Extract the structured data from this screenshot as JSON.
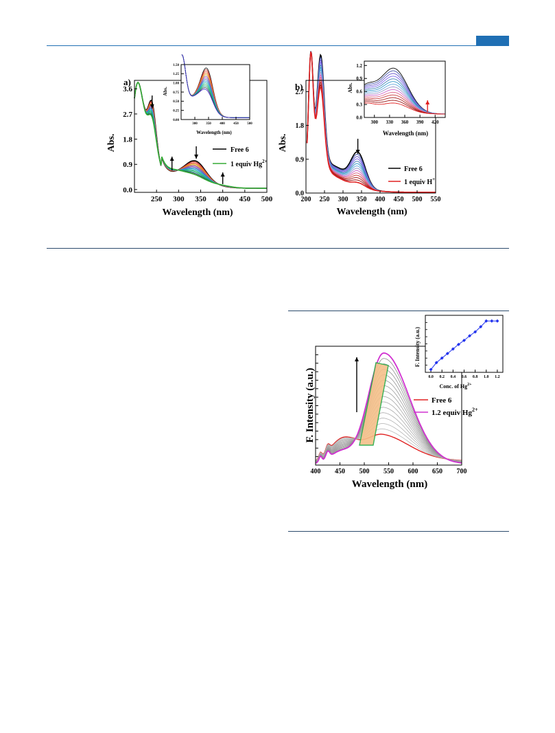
{
  "colors": {
    "rule_blue": "#1f6fb4",
    "dark_rule": "#2b4a6b"
  },
  "chart_data": [
    {
      "id": "a",
      "type": "line",
      "panel_label": "a)",
      "xlabel": "Wavelength (nm)",
      "ylabel": "Abs.",
      "xlim": [
        200,
        500
      ],
      "ylim": [
        -0.1,
        3.9
      ],
      "xticks": [
        "250",
        "300",
        "350",
        "400",
        "450",
        "500"
      ],
      "yticks": [
        "0.0",
        "0.9",
        "1.8",
        "2.7",
        "3.6"
      ],
      "legend": [
        {
          "label": "Free 6",
          "color": "#000000"
        },
        {
          "label": "1 equiv Hg",
          "sup": "2+",
          "color": "#33aa33"
        }
      ],
      "arrows": [
        "down at 240 nm",
        "up at 285 nm",
        "down at 340 nm",
        "up at 400 nm"
      ],
      "series": [
        {
          "role": "start",
          "peaks": {
            "p240": 3.3,
            "p340": 1.12
          }
        },
        {
          "role": "end",
          "peaks": {
            "p240": 2.75,
            "p340": 0.62
          }
        }
      ],
      "inset": {
        "xlabel": "Wavelength (nm)",
        "ylabel": "Abs.",
        "xlim": [
          250,
          500
        ],
        "ylim": [
          0.0,
          1.5
        ],
        "xticks": [
          "300",
          "350",
          "400",
          "450",
          "500"
        ],
        "yticks": [
          "0.00",
          "0.25",
          "0.50",
          "0.75",
          "1.00",
          "1.25",
          "1.50"
        ]
      }
    },
    {
      "id": "b",
      "type": "line",
      "panel_label": "b)",
      "xlabel": "Wavelength (nm)",
      "ylabel": "Abs.",
      "xlim": [
        200,
        550
      ],
      "ylim": [
        0.0,
        3.0
      ],
      "xticks": [
        "200",
        "250",
        "300",
        "350",
        "400",
        "450",
        "500",
        "550"
      ],
      "yticks": [
        "0.0",
        "0.9",
        "1.8",
        "2.7"
      ],
      "legend": [
        {
          "label": "Free 6",
          "color": "#000000"
        },
        {
          "label": "1 equiv H",
          "sup": "+",
          "color": "#e02020"
        }
      ],
      "arrows": [
        "down at 340 nm"
      ],
      "series": [
        {
          "role": "start",
          "peaks": {
            "p340": 1.05
          }
        },
        {
          "role": "end",
          "peaks": {
            "p340": 0.25
          }
        }
      ],
      "inset": {
        "xlabel": "Wavelength (nm)",
        "ylabel": "Abs.",
        "xlim": [
          280,
          440
        ],
        "ylim": [
          0.0,
          1.3
        ],
        "xticks": [
          "300",
          "330",
          "360",
          "390",
          "420"
        ],
        "yticks": [
          "0.0",
          "0.3",
          "0.6",
          "0.9",
          "1.2"
        ]
      }
    },
    {
      "id": "c",
      "type": "line",
      "xlabel": "Wavelength (nm)",
      "ylabel": "F. Intensity (a.u.)",
      "xlim": [
        400,
        700
      ],
      "xticks": [
        "400",
        "450",
        "500",
        "550",
        "600",
        "650",
        "700"
      ],
      "legend": [
        {
          "label": "Free 6",
          "color": "#e02020"
        },
        {
          "label": "1.2 equiv Hg",
          "sup": "2+",
          "color": "#d030d0"
        }
      ],
      "peak_nm": 540,
      "inset": {
        "type": "scatter",
        "xlabel": "Conc. of Hg",
        "xlabel_sup": "2+",
        "ylabel": "F. Intensity (a.u.)",
        "xlim": [
          -0.1,
          1.3
        ],
        "xticks": [
          "0.0",
          "0.2",
          "0.4",
          "0.6",
          "0.8",
          "1.0",
          "1.2"
        ],
        "x": [
          0.0,
          0.1,
          0.2,
          0.3,
          0.4,
          0.5,
          0.6,
          0.7,
          0.8,
          0.9,
          1.0,
          1.1,
          1.2
        ],
        "y": [
          0.05,
          0.17,
          0.25,
          0.33,
          0.41,
          0.49,
          0.56,
          0.64,
          0.71,
          0.8,
          0.9,
          0.9,
          0.9
        ],
        "color": "#2233ee"
      }
    }
  ]
}
